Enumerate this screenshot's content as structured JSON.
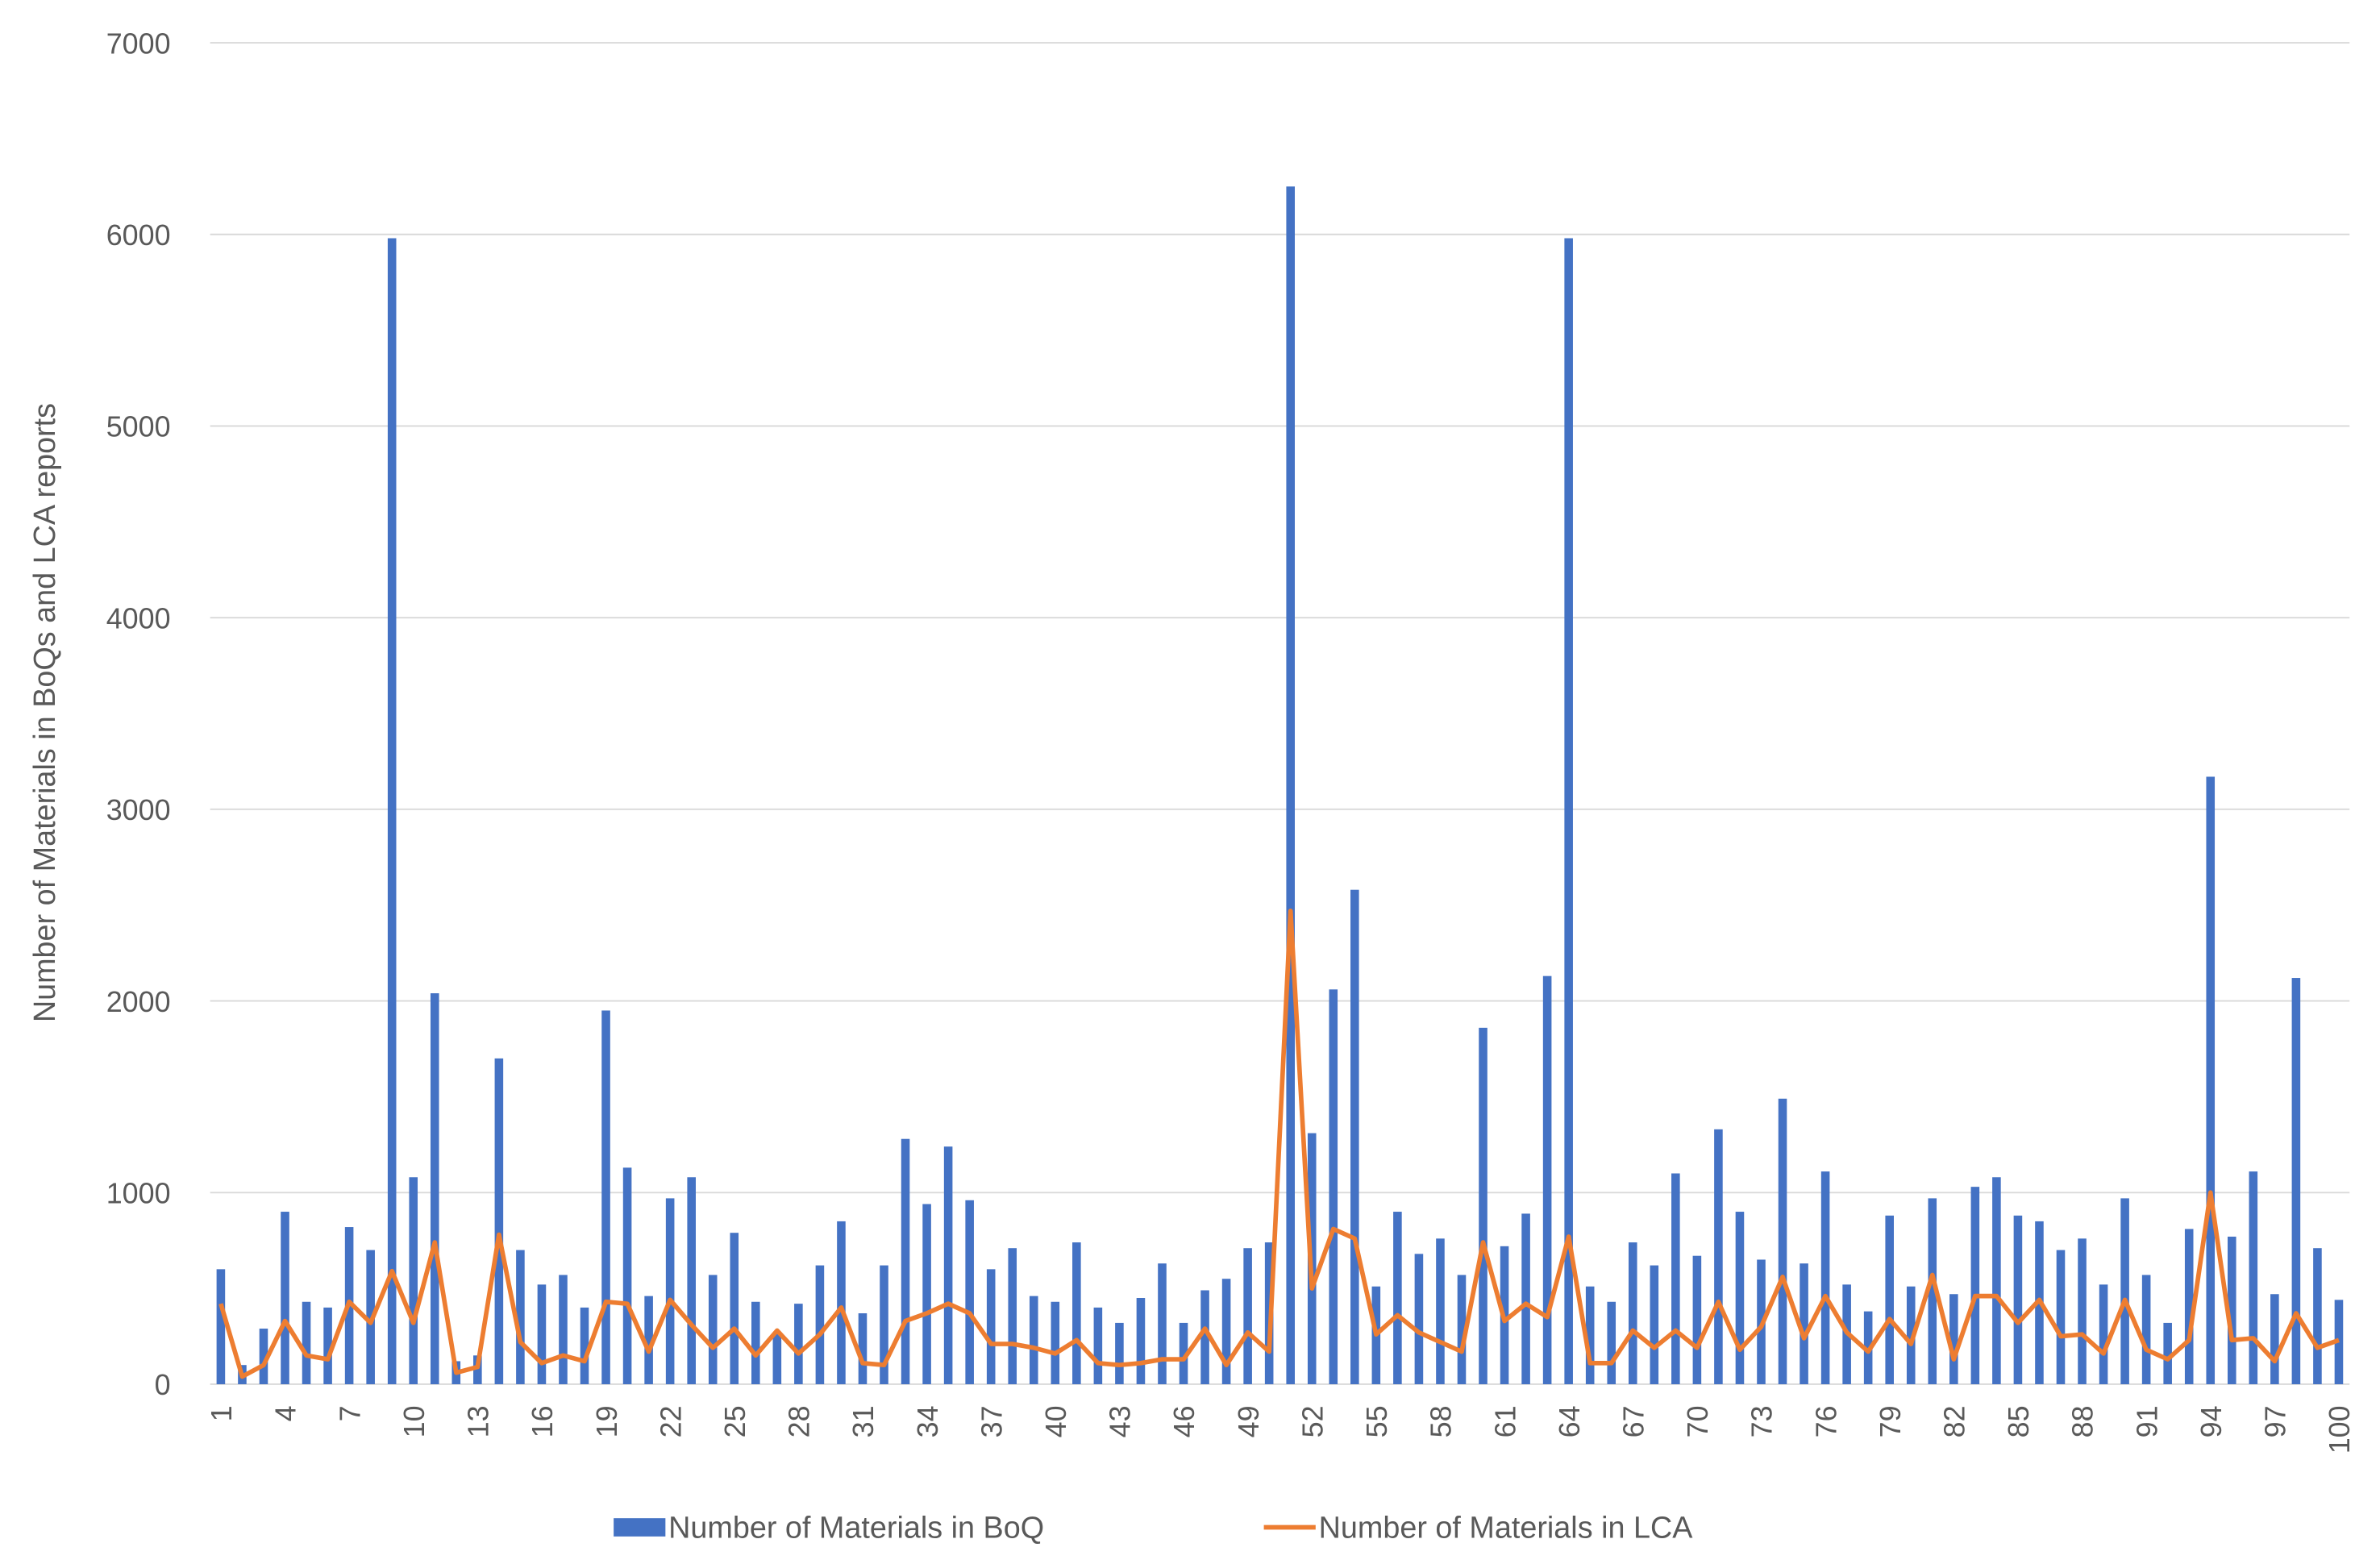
{
  "chart_data": {
    "type": "bar-line",
    "y_label": "Number of Materials in BoQs and LCA reports",
    "categories": [
      1,
      null,
      null,
      4,
      null,
      null,
      7,
      null,
      null,
      10,
      null,
      null,
      13,
      null,
      null,
      16,
      null,
      null,
      19,
      null,
      null,
      22,
      null,
      null,
      25,
      null,
      null,
      28,
      null,
      null,
      31,
      null,
      null,
      34,
      null,
      null,
      37,
      null,
      null,
      40,
      null,
      null,
      43,
      null,
      null,
      46,
      null,
      null,
      49,
      null,
      null,
      52,
      null,
      null,
      55,
      null,
      null,
      58,
      null,
      null,
      61,
      null,
      null,
      64,
      null,
      null,
      67,
      null,
      null,
      70,
      null,
      null,
      73,
      null,
      null,
      76,
      null,
      null,
      79,
      null,
      null,
      82,
      null,
      null,
      85,
      null,
      null,
      88,
      null,
      null,
      91,
      null,
      null,
      94,
      null,
      null,
      97,
      null,
      null,
      100
    ],
    "series": [
      {
        "name": "Number of Materials in BoQ",
        "type": "bar",
        "color": "#4472c4",
        "values": [
          600,
          100,
          290,
          900,
          430,
          400,
          820,
          700,
          5980,
          1080,
          2040,
          120,
          150,
          1700,
          700,
          520,
          570,
          400,
          1950,
          1130,
          460,
          970,
          1080,
          570,
          790,
          430,
          270,
          420,
          620,
          850,
          370,
          620,
          1280,
          940,
          1240,
          960,
          600,
          710,
          460,
          430,
          740,
          400,
          320,
          450,
          630,
          320,
          490,
          550,
          710,
          740,
          6250,
          1310,
          2060,
          2580,
          510,
          900,
          680,
          760,
          570,
          1860,
          720,
          890,
          2130,
          5980,
          510,
          430,
          740,
          620,
          1100,
          670,
          1330,
          900,
          650,
          1490,
          630,
          1110,
          520,
          380,
          880,
          510,
          970,
          470,
          1030,
          1080,
          880,
          850,
          700,
          760,
          520,
          970,
          570,
          320,
          810,
          3170,
          770,
          1110,
          470,
          2120,
          710,
          440
        ]
      },
      {
        "name": "Number of Materials in LCA",
        "type": "line",
        "color": "#ed7d31",
        "values": [
          420,
          40,
          100,
          330,
          150,
          130,
          430,
          320,
          590,
          320,
          740,
          60,
          90,
          780,
          220,
          110,
          150,
          120,
          430,
          420,
          170,
          440,
          310,
          190,
          290,
          150,
          280,
          160,
          260,
          400,
          110,
          100,
          330,
          370,
          420,
          370,
          210,
          210,
          190,
          160,
          230,
          110,
          100,
          110,
          130,
          130,
          290,
          100,
          270,
          170,
          2470,
          500,
          810,
          760,
          260,
          360,
          270,
          220,
          170,
          740,
          330,
          420,
          350,
          770,
          110,
          110,
          280,
          190,
          280,
          190,
          430,
          180,
          300,
          560,
          240,
          460,
          270,
          170,
          340,
          210,
          570,
          130,
          460,
          460,
          320,
          440,
          250,
          260,
          160,
          440,
          180,
          130,
          230,
          1000,
          230,
          240,
          120,
          370,
          190,
          230
        ]
      }
    ],
    "ylim": [
      0,
      7000
    ],
    "yticks": [
      0,
      1000,
      2000,
      3000,
      4000,
      5000,
      6000,
      7000
    ],
    "grid": true,
    "legend": "bottom"
  }
}
